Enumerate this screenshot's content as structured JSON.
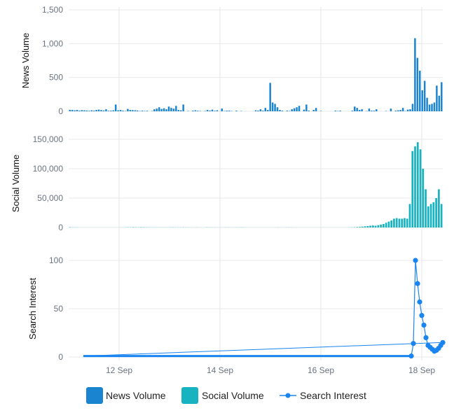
{
  "chart_data": {
    "type": "bar",
    "x_axis": {
      "ticks": [
        "12 Sep",
        "14 Sep",
        "16 Sep",
        "18 Sep"
      ],
      "tick_dates": [
        "2018-09-12",
        "2018-09-14",
        "2018-09-16",
        "2018-09-18"
      ],
      "range": [
        "2018-09-11",
        "2018-09-18T10:00"
      ],
      "grid": true
    },
    "panels": [
      {
        "key": "news",
        "ylabel": "News Volume",
        "type": "bar",
        "color": "#1b84d1",
        "ylim": [
          0,
          1500
        ],
        "yticks": [
          0,
          500,
          1000,
          1500
        ],
        "ytick_labels": [
          "0",
          "500",
          "1,000",
          "1,500"
        ]
      },
      {
        "key": "social",
        "ylabel": "Social Volume",
        "type": "bar",
        "color": "#17b3c1",
        "ylim": [
          0,
          150000
        ],
        "yticks": [
          0,
          50000,
          100000,
          150000
        ],
        "ytick_labels": [
          "0",
          "50,000",
          "100,000",
          "150,000"
        ]
      },
      {
        "key": "search",
        "ylabel": "Search Interest",
        "type": "line",
        "color": "#1a84f0",
        "ylim": [
          0,
          100
        ],
        "yticks": [
          0,
          50,
          100
        ],
        "ytick_labels": [
          "0",
          "50",
          "100"
        ]
      }
    ],
    "series": [
      {
        "name": "News Volume",
        "panel": "news",
        "values": [
          22,
          20,
          15,
          20,
          10,
          18,
          15,
          12,
          8,
          15,
          10,
          20,
          25,
          18,
          12,
          30,
          8,
          10,
          15,
          100,
          15,
          20,
          10,
          5,
          35,
          20,
          18,
          15,
          12,
          5,
          10,
          5,
          8,
          0,
          5,
          30,
          40,
          60,
          35,
          45,
          30,
          70,
          50,
          40,
          80,
          20,
          15,
          100,
          0,
          5,
          0,
          10,
          15,
          8,
          5,
          0,
          5,
          20,
          10,
          25,
          8,
          15,
          0,
          40,
          5,
          10,
          10,
          5,
          0,
          10,
          0,
          5,
          0,
          0,
          0,
          0,
          0,
          15,
          10,
          30,
          10,
          50,
          20,
          420,
          130,
          110,
          60,
          20,
          10,
          0,
          10,
          5,
          30,
          45,
          60,
          80,
          0,
          25,
          100,
          10,
          0,
          20,
          50,
          0,
          5,
          0,
          0,
          0,
          0,
          0,
          10,
          5,
          10,
          0,
          0,
          0,
          0,
          10,
          70,
          50,
          20,
          30,
          0,
          5,
          40,
          10,
          10,
          30,
          0,
          0,
          0,
          5,
          0,
          40,
          0,
          10,
          15,
          20,
          50,
          5,
          25,
          30,
          110,
          1080,
          790,
          600,
          310,
          450,
          200,
          100,
          110,
          130,
          380,
          230,
          430
        ],
        "marker": "square"
      },
      {
        "name": "Social Volume",
        "panel": "social",
        "values": [
          500,
          300,
          200,
          150,
          100,
          100,
          100,
          100,
          100,
          100,
          100,
          100,
          100,
          100,
          100,
          100,
          100,
          100,
          100,
          100,
          100,
          200,
          300,
          300,
          500,
          400,
          300,
          500,
          400,
          300,
          300,
          200,
          200,
          200,
          200,
          200,
          200,
          200,
          300,
          300,
          200,
          200,
          200,
          300,
          200,
          200,
          100,
          100,
          200,
          100,
          100,
          100,
          300,
          200,
          200,
          200,
          100,
          100,
          100,
          200,
          200,
          100,
          200,
          200,
          200,
          300,
          200,
          100,
          100,
          100,
          100,
          100,
          100,
          100,
          100,
          100,
          100,
          100,
          100,
          200,
          100,
          100,
          200,
          200,
          200,
          100,
          100,
          100,
          100,
          100,
          100,
          100,
          100,
          100,
          100,
          100,
          100,
          100,
          100,
          100,
          100,
          100,
          100,
          100,
          100,
          100,
          200,
          300,
          500,
          800,
          1000,
          1500,
          2000,
          2500,
          3000,
          3500,
          3000,
          4000,
          5000,
          6000,
          8000,
          10000,
          12000,
          15000,
          16000,
          15000,
          15000,
          16000,
          15000,
          40000,
          130000,
          138000,
          145000,
          133000,
          100000,
          65000,
          36000,
          40000,
          43000,
          50000,
          65000,
          40000
        ],
        "marker": "square"
      },
      {
        "name": "Search Interest",
        "panel": "search",
        "points": [
          [
            "2018-09-11T07:00",
            1
          ],
          [
            "2018-09-17T19:00",
            1
          ],
          [
            "2018-09-17T20:00",
            14
          ],
          [
            "2018-09-17T21:00",
            100
          ],
          [
            "2018-09-17T22:00",
            76
          ],
          [
            "2018-09-17T23:00",
            57
          ],
          [
            "2018-09-18T00:00",
            43
          ],
          [
            "2018-09-18T01:00",
            33
          ],
          [
            "2018-09-18T02:00",
            20
          ],
          [
            "2018-09-18T03:00",
            12
          ],
          [
            "2018-09-18T04:00",
            10
          ],
          [
            "2018-09-18T05:00",
            8
          ],
          [
            "2018-09-18T06:00",
            6
          ],
          [
            "2018-09-18T07:00",
            7
          ],
          [
            "2018-09-18T08:00",
            9
          ],
          [
            "2018-09-18T09:00",
            12
          ],
          [
            "2018-09-18T10:00",
            15
          ]
        ],
        "marker": "circle"
      }
    ],
    "legend": {
      "placement": "bottom-center",
      "items": [
        {
          "label": "News Volume",
          "color": "#1b84d1",
          "symbol": "square"
        },
        {
          "label": "Social Volume",
          "color": "#17b3c1",
          "symbol": "square"
        },
        {
          "label": "Search Interest",
          "color": "#1a84f0",
          "symbol": "line-circle"
        }
      ]
    }
  }
}
